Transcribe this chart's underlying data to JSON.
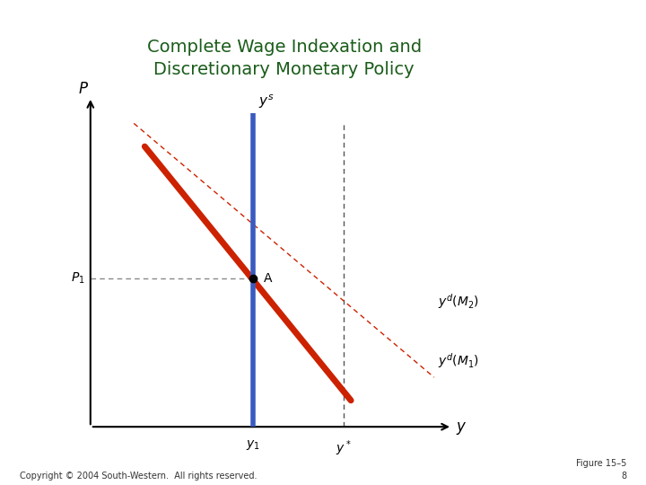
{
  "title_line1": "Complete Wage Indexation and",
  "title_line2": "Discretionary Monetary Policy",
  "title_color": "#1a5c1a",
  "title_fontsize": 14,
  "bg_color": "#ffffff",
  "axis_color": "#000000",
  "supply_color": "#3a5bbf",
  "demand1_color": "#cc2200",
  "demand2_color": "#cc2200",
  "point_color": "#000000",
  "dashed_h_color": "#888888",
  "dashed_v_color": "#555555",
  "xlabel": "y",
  "ylabel": "P",
  "copyright": "Copyright © 2004 South-Western.  All rights reserved.",
  "figure_label": "Figure 15–5",
  "figure_number": "8",
  "xlim": [
    0,
    10
  ],
  "ylim": [
    0,
    10
  ],
  "supply_x": 4.5,
  "p1_y": 4.5,
  "ystar_x": 7.0,
  "demand1_x1": 1.5,
  "demand1_y1": 8.5,
  "demand1_x2": 7.2,
  "demand1_y2": 0.8,
  "demand2_x1": 1.2,
  "demand2_y1": 9.2,
  "demand2_x2": 9.5,
  "demand2_y2": 1.5
}
